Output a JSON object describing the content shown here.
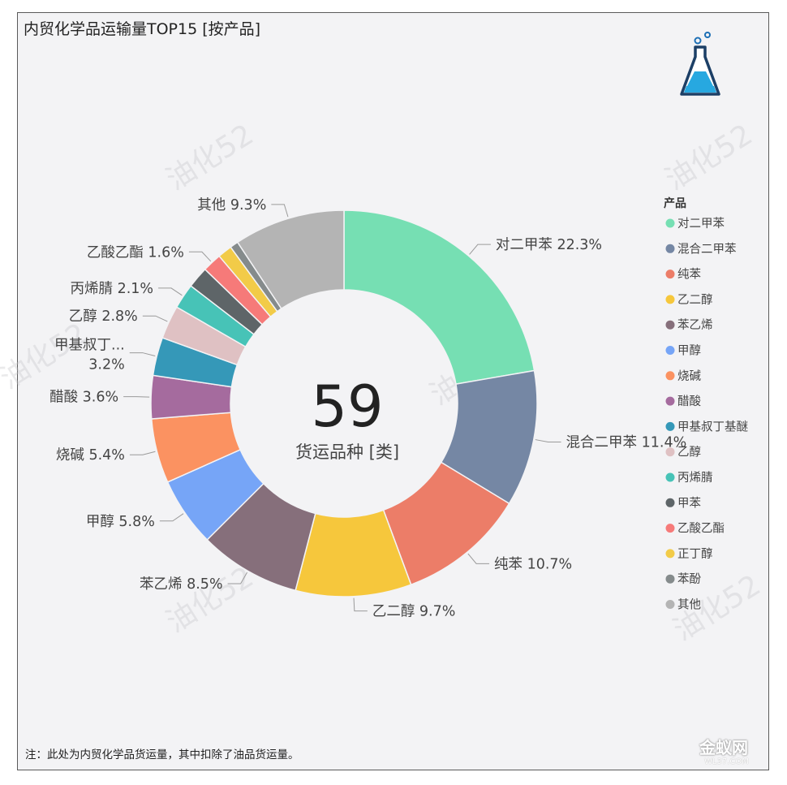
{
  "title": "内贸化学品运输量TOP15 [按产品]",
  "center": {
    "value": "59",
    "caption": "货运品种 [类]"
  },
  "footnote": "注：此处为内贸化学品货运量，其中扣除了油品货运量。",
  "site_watermark": {
    "main": "金蚁网",
    "sub": "WL37.COM"
  },
  "watermark_text": "油化52",
  "icon": "flask-icon",
  "legend": {
    "title": "产品"
  },
  "chart_data": {
    "type": "pie",
    "variant": "donut",
    "title": "内贸化学品运输量TOP15 [按产品]",
    "legend_placement": "right",
    "slices": [
      {
        "name": "对二甲苯",
        "value": 22.3,
        "label": "对二甲苯 22.3%",
        "color": "#76dfb3"
      },
      {
        "name": "混合二甲苯",
        "value": 11.4,
        "label": "混合二甲苯 11.4%",
        "color": "#7587a4"
      },
      {
        "name": "纯苯",
        "value": 10.7,
        "label": "纯苯 10.7%",
        "color": "#ec7d68"
      },
      {
        "name": "乙二醇",
        "value": 9.7,
        "label": "乙二醇 9.7%",
        "color": "#f6c73c"
      },
      {
        "name": "苯乙烯",
        "value": 8.5,
        "label": "苯乙烯 8.5%",
        "color": "#866f7b"
      },
      {
        "name": "甲醇",
        "value": 5.8,
        "label": "甲醇 5.8%",
        "color": "#76a5f7"
      },
      {
        "name": "烧碱",
        "value": 5.4,
        "label": "烧碱 5.4%",
        "color": "#fb9261"
      },
      {
        "name": "醋酸",
        "value": 3.6,
        "label": "醋酸 3.6%",
        "color": "#a56b9e"
      },
      {
        "name": "甲基叔丁基醚",
        "value": 3.2,
        "label": "甲基叔丁...",
        "label2": "3.2%",
        "color": "#3598b8"
      },
      {
        "name": "乙醇",
        "value": 2.8,
        "label": "乙醇 2.8%",
        "color": "#dfc1c3"
      },
      {
        "name": "丙烯腈",
        "value": 2.1,
        "label": "丙烯腈 2.1%",
        "color": "#47c3b7"
      },
      {
        "name": "甲苯",
        "value": 1.8,
        "color": "#5e6568"
      },
      {
        "name": "乙酸乙酯",
        "value": 1.6,
        "label": "乙酸乙酯 1.6%",
        "color": "#f67a79"
      },
      {
        "name": "正丁醇",
        "value": 1.2,
        "color": "#f2cb48"
      },
      {
        "name": "苯酚",
        "value": 0.7,
        "color": "#858b8c"
      },
      {
        "name": "其他",
        "value": 9.3,
        "label": "其他 9.3%",
        "color": "#b4b4b4"
      }
    ]
  }
}
